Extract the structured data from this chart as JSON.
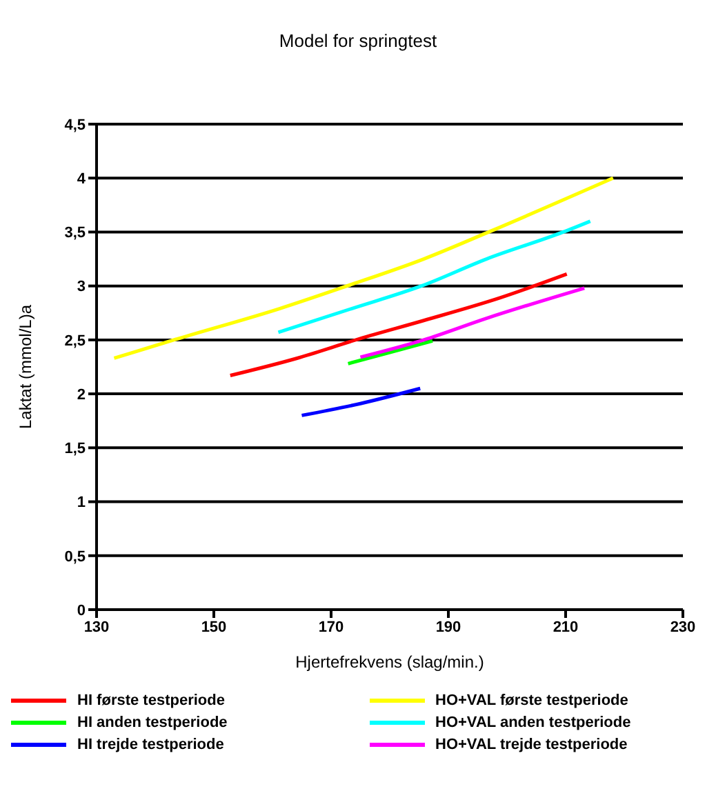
{
  "chart_data": {
    "type": "line",
    "title": "Model for springtest",
    "xlabel": "Hjertefrekvens (slag/min.)",
    "ylabel": "Laktat (mmol/L)a",
    "xlim": [
      130,
      230
    ],
    "xticks": [
      130,
      150,
      170,
      190,
      210,
      230
    ],
    "ylim": [
      0,
      4.5
    ],
    "yticks": [
      0,
      {
        "value": 0.5,
        "label": "0,5"
      },
      1,
      {
        "value": 1.5,
        "label": "1,5"
      },
      2,
      {
        "value": 2.5,
        "label": "2,5"
      },
      3,
      {
        "value": 3.5,
        "label": "3,5"
      },
      4,
      {
        "value": 4.5,
        "label": "4,5"
      }
    ],
    "grid": "y",
    "legend": "bottom",
    "marker": "none",
    "line_style": "solid",
    "series": [
      {
        "name": "HI første testperiode",
        "color": "#ff0000",
        "x": [
          152.8,
          164.2,
          174.8,
          185.8,
          198.8,
          210.2
        ],
        "values": [
          2.17,
          2.33,
          2.51,
          2.68,
          2.89,
          3.11
        ]
      },
      {
        "name": "HI anden testperiode",
        "color": "#00ff00",
        "x": [
          172.9,
          187.3
        ],
        "values": [
          2.28,
          2.49
        ]
      },
      {
        "name": "HI trejde testperiode",
        "color": "#0000ff",
        "x": [
          165,
          175,
          185.2
        ],
        "values": [
          1.8,
          1.91,
          2.05
        ]
      },
      {
        "name": "HO+VAL første testperiode",
        "color": "#ffff00",
        "x": [
          133,
          143.8,
          161.2,
          172.7,
          185.8,
          197.3,
          218.1
        ],
        "values": [
          2.33,
          2.51,
          2.79,
          3.0,
          3.25,
          3.51,
          4.0
        ]
      },
      {
        "name": "HO+VAL anden testperiode",
        "color": "#00ffff",
        "x": [
          161,
          173.5,
          185.4,
          196.5,
          209.6,
          214.2
        ],
        "values": [
          2.57,
          2.79,
          3.0,
          3.25,
          3.5,
          3.6
        ]
      },
      {
        "name": "HO+VAL trejde testperiode",
        "color": "#ff00ff",
        "x": [
          175,
          185.8,
          196.5,
          213.2
        ],
        "values": [
          2.34,
          2.5,
          2.7,
          2.98
        ]
      }
    ]
  }
}
